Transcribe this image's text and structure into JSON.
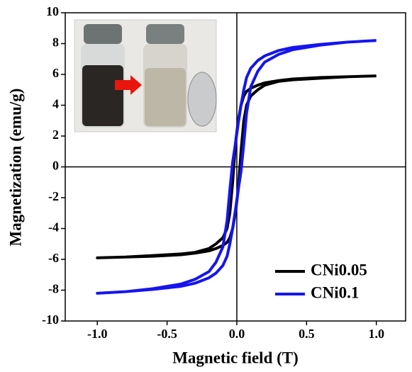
{
  "chart_data": {
    "type": "line",
    "x_label": "Magnetic field (T)",
    "y_label": "Magnetization (emu/g)",
    "xlim": [
      -1.23,
      1.21
    ],
    "ylim": [
      -10,
      10
    ],
    "xticks": [
      {
        "value": -1,
        "label": "-1.0"
      },
      -0.5,
      {
        "value": 0,
        "label": "0.0"
      },
      0.5,
      {
        "value": 1,
        "label": "1.0"
      }
    ],
    "yticks": [
      -10,
      -8,
      -6,
      -4,
      -2,
      0,
      2,
      4,
      6,
      8,
      10
    ],
    "legend": "lower right",
    "x": [
      1,
      0.8,
      0.6,
      0.4,
      0.3,
      0.2,
      0.15,
      0.1,
      0.07,
      0.05,
      0.03,
      0.01,
      -0.01,
      -0.03,
      -0.05,
      -0.07,
      -0.1,
      -0.15,
      -0.2,
      -0.3,
      -0.4,
      -0.6,
      -0.8,
      -1,
      -1,
      -0.8,
      -0.6,
      -0.4,
      -0.3,
      -0.2,
      -0.15,
      -0.1,
      -0.07,
      -0.05,
      -0.03,
      -0.01,
      0.01,
      0.03,
      0.05,
      0.07,
      0.1,
      0.15,
      0.2,
      0.3,
      0.4,
      0.6,
      0.8,
      1
    ],
    "series": [
      {
        "name": "CNi0.05",
        "color": "#000000",
        "values": [
          5.9,
          5.85,
          5.8,
          5.7,
          5.6,
          5.45,
          5.3,
          5.1,
          4.9,
          4.6,
          4.0,
          3.0,
          1.5,
          -1.0,
          -3.0,
          -4.0,
          -4.6,
          -5.0,
          -5.3,
          -5.55,
          -5.65,
          -5.75,
          -5.85,
          -5.9,
          -5.9,
          -5.85,
          -5.8,
          -5.7,
          -5.6,
          -5.45,
          -5.3,
          -5.1,
          -4.9,
          -4.6,
          -4.0,
          -3.0,
          -1.5,
          1.0,
          3.0,
          4.0,
          4.6,
          5.0,
          5.3,
          5.55,
          5.65,
          5.75,
          5.85,
          5.9
        ]
      },
      {
        "name": "CNi0.1",
        "color": "#1515ee",
        "values": [
          8.2,
          8.1,
          7.95,
          7.75,
          7.55,
          7.2,
          6.9,
          6.4,
          5.8,
          5.0,
          4.0,
          2.8,
          1.5,
          0.3,
          -1.5,
          -3.5,
          -5.2,
          -6.2,
          -6.8,
          -7.3,
          -7.6,
          -7.9,
          -8.1,
          -8.2,
          -8.2,
          -8.1,
          -7.95,
          -7.75,
          -7.55,
          -7.2,
          -6.9,
          -6.4,
          -5.8,
          -5.0,
          -4.0,
          -2.8,
          -1.5,
          -0.3,
          1.5,
          3.5,
          5.2,
          6.2,
          6.8,
          7.3,
          7.6,
          7.9,
          8.1,
          8.2
        ]
      }
    ]
  }
}
